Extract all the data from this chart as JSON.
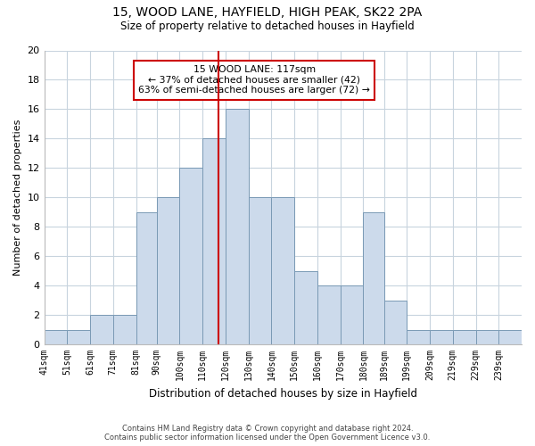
{
  "title1": "15, WOOD LANE, HAYFIELD, HIGH PEAK, SK22 2PA",
  "title2": "Size of property relative to detached houses in Hayfield",
  "xlabel": "Distribution of detached houses by size in Hayfield",
  "ylabel": "Number of detached properties",
  "bin_labels": [
    "41sqm",
    "51sqm",
    "61sqm",
    "71sqm",
    "81sqm",
    "90sqm",
    "100sqm",
    "110sqm",
    "120sqm",
    "130sqm",
    "140sqm",
    "150sqm",
    "160sqm",
    "170sqm",
    "180sqm",
    "189sqm",
    "199sqm",
    "209sqm",
    "219sqm",
    "229sqm",
    "239sqm"
  ],
  "bin_edges": [
    41,
    51,
    61,
    71,
    81,
    90,
    100,
    110,
    120,
    130,
    140,
    150,
    160,
    170,
    180,
    189,
    199,
    209,
    219,
    229,
    239,
    249
  ],
  "counts": [
    1,
    1,
    2,
    2,
    9,
    10,
    12,
    14,
    16,
    10,
    10,
    5,
    4,
    4,
    9,
    3,
    1,
    1,
    1,
    1,
    1
  ],
  "property_value": 117,
  "bar_color": "#ccdaeb",
  "bar_edge_color": "#7a9ab5",
  "vline_color": "#cc0000",
  "annotation_box_edge": "#cc0000",
  "annotation_text_line1": "15 WOOD LANE: 117sqm",
  "annotation_text_line2": "← 37% of detached houses are smaller (42)",
  "annotation_text_line3": "63% of semi-detached houses are larger (72) →",
  "ylim": [
    0,
    20
  ],
  "yticks": [
    0,
    2,
    4,
    6,
    8,
    10,
    12,
    14,
    16,
    18,
    20
  ],
  "footer_line1": "Contains HM Land Registry data © Crown copyright and database right 2024.",
  "footer_line2": "Contains public sector information licensed under the Open Government Licence v3.0.",
  "background_color": "#ffffff",
  "grid_color": "#c8d4de",
  "figsize": [
    6.0,
    5.0
  ],
  "dpi": 100
}
